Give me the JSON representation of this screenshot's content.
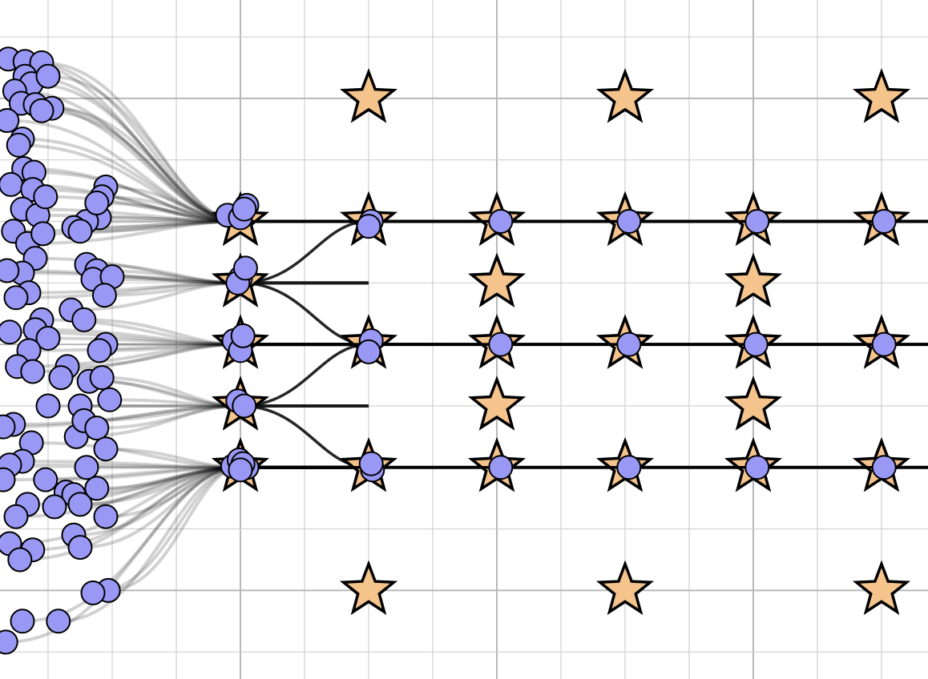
{
  "chart_data": {
    "type": "scatter",
    "xlim": [
      -1.875,
      5.3625
    ],
    "ylim": [
      -2.72,
      2.8
    ],
    "xticks": [
      -1.5,
      -1,
      -0.5,
      0,
      0.5,
      1,
      1.5,
      2,
      2.5,
      3,
      3.5,
      4,
      4.5,
      5
    ],
    "yticks": [
      -2.5,
      -2,
      -1.5,
      -1,
      -0.5,
      0,
      0.5,
      1,
      1.5,
      2,
      2.5
    ],
    "grid": true,
    "series": [
      {
        "color": "#f5c48c",
        "marker": "star",
        "x": [
          1,
          3,
          5,
          0,
          1,
          2,
          3,
          4,
          5,
          0,
          2,
          4,
          0,
          1,
          2,
          3,
          4,
          5,
          0,
          2,
          4,
          0,
          1,
          2,
          3,
          4,
          5,
          1,
          3,
          5
        ],
        "y": [
          2,
          2,
          2,
          1,
          1,
          1,
          1,
          1,
          1,
          0.5,
          0.5,
          0.5,
          0,
          0,
          0,
          0,
          0,
          0,
          -0.5,
          -0.5,
          -0.5,
          -1,
          -1,
          -1,
          -1,
          -1,
          -1,
          -2,
          -2,
          -2
        ]
      },
      {
        "color": "#9999f5",
        "marker": "circle",
        "x": [
          -1.81,
          -1.68,
          -1.55,
          -1.68,
          -1.63,
          -1.5,
          -1.76,
          -1.71,
          -1.6,
          -1.47,
          -1.82,
          -1.7,
          -1.55,
          -1.69,
          -1.73,
          -1.61,
          -1.79,
          -1.62,
          -1.7,
          -1.58,
          -1.52,
          -1.05,
          -1.08,
          -1.1,
          -1.2,
          -1.12,
          -1.77,
          -1.66,
          -1.54,
          -1.3,
          -1.25,
          -1.6,
          -1.7,
          -1.82,
          -1.2,
          -1.12,
          -1.15,
          -1.0,
          -1.06,
          -1.65,
          -1.75,
          -1.55,
          -1.6,
          -1.8,
          -1.32,
          -1.22,
          -1.05,
          -1.1,
          -1.5,
          -1.65,
          -1.74,
          -1.62,
          -1.35,
          -1.4,
          -1.18,
          -1.08,
          -1.02,
          -1.25,
          -1.5,
          -1.77,
          -1.85,
          -1.63,
          -1.7,
          -1.8,
          -1.28,
          -1.22,
          -1.12,
          -1.05,
          -1.2,
          -1.36,
          -1.52,
          -1.85,
          -1.66,
          -1.75,
          -1.3,
          -1.25,
          -1.12,
          -1.05,
          -1.45,
          -1.62,
          -1.8,
          -1.72,
          -1.3,
          -1.25,
          -1.03,
          -1.15,
          -1.42,
          -1.7,
          -1.83,
          -0.1,
          0.05,
          0.0,
          0.03,
          0.0,
          -0.02,
          0.04,
          -0.05,
          0.0,
          0.02,
          -0.02,
          0.03,
          -0.06,
          -0.01,
          0.05,
          0.02,
          0.0,
          1.02,
          1.0,
          1.02,
          1.0,
          1.03,
          1.02,
          2.03,
          3.03,
          4.03,
          5.02,
          2.03,
          3.03,
          4.02,
          5.02,
          2.03,
          3.03,
          4.03,
          5.02
        ],
        "y": [
          2.32,
          2.3,
          2.29,
          2.18,
          2.12,
          2.18,
          2.06,
          1.96,
          1.95,
          1.92,
          1.82,
          1.67,
          1.9,
          1.43,
          1.62,
          1.4,
          1.3,
          1.26,
          1.1,
          1.05,
          1.2,
          1.28,
          1.2,
          1.03,
          1.0,
          1.15,
          0.92,
          0.82,
          0.9,
          0.95,
          0.92,
          0.7,
          0.58,
          0.6,
          0.65,
          0.6,
          0.53,
          0.55,
          0.4,
          0.42,
          0.38,
          0.2,
          0.12,
          0.1,
          0.28,
          0.2,
          0.0,
          -0.05,
          0.05,
          -0.05,
          -0.18,
          -0.22,
          -0.18,
          -0.27,
          -0.3,
          -0.27,
          -0.45,
          -0.5,
          -0.5,
          -0.65,
          -0.67,
          -0.8,
          -0.95,
          -0.98,
          -0.75,
          -0.62,
          -0.68,
          -0.85,
          -1.0,
          -1.2,
          -1.1,
          -1.1,
          -1.3,
          -1.4,
          -1.22,
          -1.3,
          -1.17,
          -1.4,
          -1.32,
          -1.67,
          -1.62,
          -1.75,
          -1.55,
          -1.65,
          -2.0,
          -2.02,
          -2.25,
          -2.25,
          -2.42,
          1.05,
          1.13,
          1.03,
          1.1,
          0.54,
          0.5,
          0.62,
          0.03,
          -0.05,
          0.07,
          -0.46,
          -0.5,
          -0.99,
          -0.94,
          -1.0,
          -0.97,
          -1.02,
          1.0,
          0.96,
          0.03,
          -0.06,
          -1.02,
          -0.97,
          1.0,
          1.0,
          1.0,
          1.0,
          0.0,
          0.0,
          0.0,
          0.0,
          -1.0,
          -1.0,
          -1.0,
          -1.0
        ]
      }
    ]
  }
}
